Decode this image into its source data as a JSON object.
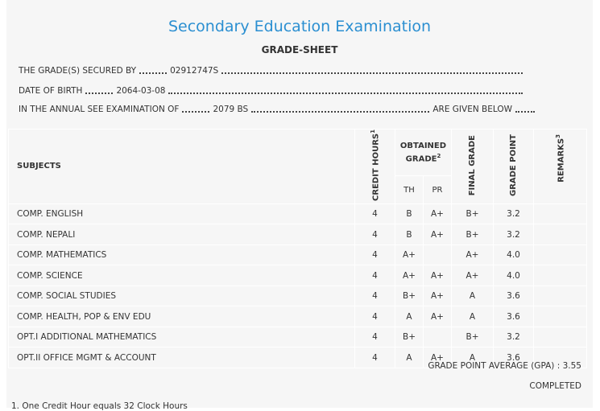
{
  "header": {
    "title": "Secondary Education Examination",
    "subtitle": "GRADE-SHEET"
  },
  "info": [
    {
      "label": "THE GRADE(S) SECURED BY",
      "value": "02912747S"
    },
    {
      "label": "DATE OF BIRTH",
      "value": "2064-03-08"
    },
    {
      "label": "IN THE ANNUAL SEE EXAMINATION OF",
      "value": "2079 BS",
      "suffix": "ARE GIVEN BELOW"
    }
  ],
  "table": {
    "headers": {
      "subjects": "SUBJECTS",
      "credit_hours": "CREDIT HOURS",
      "credit_hours_note": "1",
      "obtained_grade": "OBTAINED GRADE",
      "obtained_grade_note": "2",
      "th": "TH",
      "pr": "PR",
      "final_grade": "FINAL GRADE",
      "grade_point": "GRADE POINT",
      "remarks": "REMARKS",
      "remarks_note": "3"
    },
    "rows": [
      [
        "COMP. ENGLISH",
        4,
        "B",
        "A+",
        "B+",
        "3.2"
      ],
      [
        "COMP. NEPALI",
        4,
        "B",
        "A+",
        "B+",
        "3.2"
      ],
      [
        "COMP. MATHEMATICS",
        4,
        "A+",
        null,
        "A+",
        "4.0"
      ],
      [
        "COMP. SCIENCE",
        4,
        "A+",
        "A+",
        "A+",
        "4.0"
      ],
      [
        "COMP. SOCIAL STUDIES",
        4,
        "B+",
        "A+",
        "A",
        "3.6"
      ],
      [
        "COMP. HEALTH, POP & ENV EDU",
        4,
        "A",
        "A+",
        "A",
        "3.6"
      ],
      [
        "OPT.I ADDITIONAL MATHEMATICS",
        4,
        "B+",
        null,
        "B+",
        "3.2"
      ],
      [
        "OPT.II OFFICE MGMT & ACCOUNT",
        4,
        "A",
        "A+",
        "A",
        "3.6"
      ]
    ]
  },
  "summary": {
    "gpa_label": "GRADE POINT AVERAGE (GPA) :",
    "gpa": "3.55",
    "status": "COMPLETED"
  },
  "footnotes": [
    "1. One Credit Hour equals 32 Clock Hours"
  ]
}
